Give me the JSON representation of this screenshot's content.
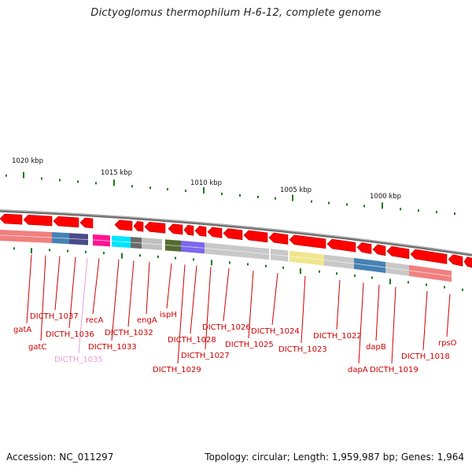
{
  "title": "Dictyoglomus thermophilum H-6-12, complete genome",
  "footer": {
    "accession_label": "Accession:",
    "accession": "NC_011297",
    "topology_label": "Topology:",
    "topology": "circular",
    "length_label": "Length:",
    "length": "1,959,987 bp",
    "genes_label": "Genes:",
    "genes": "1,964"
  },
  "scale_labels": [
    "1020 kbp",
    "1015 kbp",
    "1010 kbp",
    "1005 kbp",
    "1000 kbp"
  ],
  "gene_labels": [
    "gatA",
    "gatC",
    "DICTH_1037",
    "DICTH_1036",
    "DICTH_1035",
    "recA",
    "DICTH_1033",
    "DICTH_1032",
    "engA",
    "ispH",
    "DICTH_1029",
    "DICTH_1028",
    "DICTH_1027",
    "DICTH_1026",
    "DICTH_1025",
    "DICTH_1024",
    "DICTH_1023",
    "DICTH_1022",
    "dapA",
    "dapB",
    "DICTH_1019",
    "DICTH_1018",
    "rpsO"
  ],
  "colors": {
    "backbone": "#8a8a8a",
    "gene_arrow": "#ff0000",
    "label_red": "#cc0000",
    "label_pink": "#e8a0d0",
    "tick_green": "#1a7a1a",
    "feature_grey": "#bdbdbd"
  }
}
